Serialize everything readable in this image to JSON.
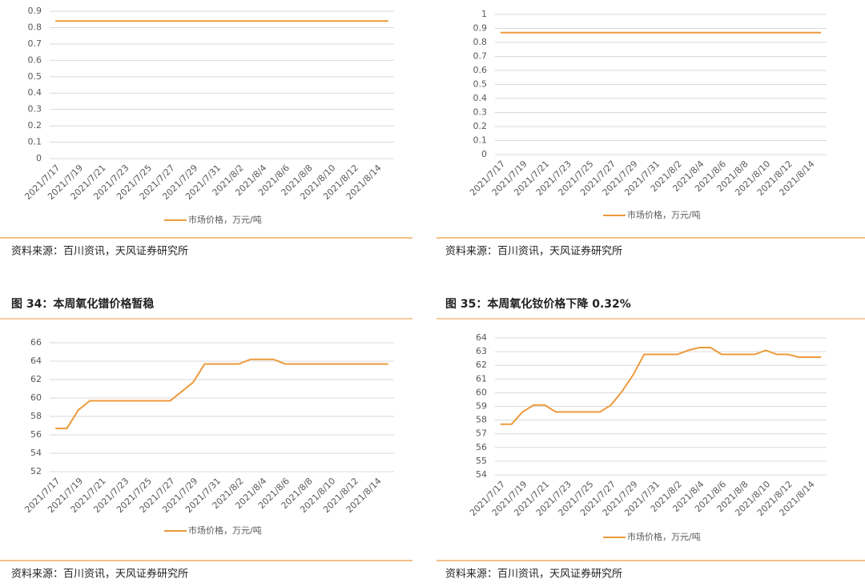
{
  "chart_data": [
    {
      "type": "line",
      "categories": [
        "2021/7/17",
        null,
        "2021/7/19",
        null,
        "2021/7/21",
        null,
        "2021/7/23",
        null,
        "2021/7/25",
        null,
        "2021/7/27",
        null,
        "2021/7/29",
        null,
        "2021/7/31",
        null,
        "2021/8/2",
        null,
        "2021/8/4",
        null,
        "2021/8/6",
        null,
        "2021/8/8",
        null,
        "2021/8/10",
        null,
        "2021/8/12",
        null,
        "2021/8/14",
        null
      ],
      "series": [
        {
          "name": "市场价格，万元/吨",
          "color": "#ed9a3c",
          "values": [
            0.84,
            0.84,
            0.84,
            0.84,
            0.84,
            0.84,
            0.84,
            0.84,
            0.84,
            0.84,
            0.84,
            0.84,
            0.84,
            0.84,
            0.84,
            0.84,
            0.84,
            0.84,
            0.84,
            0.84,
            0.84,
            0.84,
            0.84,
            0.84,
            0.84,
            0.84,
            0.84,
            0.84,
            0.84,
            0.84
          ]
        }
      ],
      "ylim": [
        0,
        0.9
      ],
      "yticks": [
        0,
        0.1,
        0.2,
        0.3,
        0.4,
        0.5,
        0.6,
        0.7,
        0.8,
        0.9
      ],
      "grid": true,
      "legend": "bottom",
      "source": "资料来源：百川资讯，天风证券研究所"
    },
    {
      "type": "line",
      "categories": [
        "2021/7/17",
        null,
        "2021/7/19",
        null,
        "2021/7/21",
        null,
        "2021/7/23",
        null,
        "2021/7/25",
        null,
        "2021/7/27",
        null,
        "2021/7/29",
        null,
        "2021/7/31",
        null,
        "2021/8/2",
        null,
        "2021/8/4",
        null,
        "2021/8/6",
        null,
        "2021/8/8",
        null,
        "2021/8/10",
        null,
        "2021/8/12",
        null,
        "2021/8/14",
        null
      ],
      "series": [
        {
          "name": "市场价格，万元/吨",
          "color": "#ed9a3c",
          "values": [
            0.87,
            0.87,
            0.87,
            0.87,
            0.87,
            0.87,
            0.87,
            0.87,
            0.87,
            0.87,
            0.87,
            0.87,
            0.87,
            0.87,
            0.87,
            0.87,
            0.87,
            0.87,
            0.87,
            0.87,
            0.87,
            0.87,
            0.87,
            0.87,
            0.87,
            0.87,
            0.87,
            0.87,
            0.87,
            0.87
          ]
        }
      ],
      "ylim": [
        0,
        1
      ],
      "yticks": [
        0,
        0.1,
        0.2,
        0.3,
        0.4,
        0.5,
        0.6,
        0.7,
        0.8,
        0.9,
        1
      ],
      "grid": true,
      "legend": "bottom",
      "source": "资料来源：百川资讯，天风证券研究所"
    },
    {
      "type": "line",
      "title": "图 34：本周氧化镨价格暂稳",
      "categories": [
        "2021/7/17",
        null,
        "2021/7/19",
        null,
        "2021/7/21",
        null,
        "2021/7/23",
        null,
        "2021/7/25",
        null,
        "2021/7/27",
        null,
        "2021/7/29",
        null,
        "2021/7/31",
        null,
        "2021/8/2",
        null,
        "2021/8/4",
        null,
        "2021/8/6",
        null,
        "2021/8/8",
        null,
        "2021/8/10",
        null,
        "2021/8/12",
        null,
        "2021/8/14",
        null
      ],
      "series": [
        {
          "name": "市场价格，万元/吨",
          "color": "#ed9a3c",
          "values": [
            56.7,
            56.7,
            58.7,
            59.7,
            59.7,
            59.7,
            59.7,
            59.7,
            59.7,
            59.7,
            59.7,
            60.7,
            61.7,
            63.7,
            63.7,
            63.7,
            63.7,
            64.2,
            64.2,
            64.2,
            63.7,
            63.7,
            63.7,
            63.7,
            63.7,
            63.7,
            63.7,
            63.7,
            63.7,
            63.7
          ]
        }
      ],
      "ylim": [
        52,
        66
      ],
      "yticks": [
        52,
        54,
        56,
        58,
        60,
        62,
        64,
        66
      ],
      "grid": true,
      "legend": "bottom",
      "source": "资料来源：百川资讯，天风证券研究所"
    },
    {
      "type": "line",
      "title": "图 35：本周氧化钕价格下降 0.32%",
      "categories": [
        "2021/7/17",
        null,
        "2021/7/19",
        null,
        "2021/7/21",
        null,
        "2021/7/23",
        null,
        "2021/7/25",
        null,
        "2021/7/27",
        null,
        "2021/7/29",
        null,
        "2021/7/31",
        null,
        "2021/8/2",
        null,
        "2021/8/4",
        null,
        "2021/8/6",
        null,
        "2021/8/8",
        null,
        "2021/8/10",
        null,
        "2021/8/12",
        null,
        "2021/8/14",
        null
      ],
      "series": [
        {
          "name": "市场价格，万元/吨",
          "color": "#ed9a3c",
          "values": [
            57.7,
            57.7,
            58.6,
            59.1,
            59.1,
            58.6,
            58.6,
            58.6,
            58.6,
            58.6,
            59.1,
            60.1,
            61.3,
            62.8,
            62.8,
            62.8,
            62.8,
            63.1,
            63.3,
            63.3,
            62.8,
            62.8,
            62.8,
            62.8,
            63.1,
            62.8,
            62.8,
            62.6,
            62.6,
            62.6
          ]
        }
      ],
      "ylim": [
        54,
        64
      ],
      "yticks": [
        54,
        55,
        56,
        57,
        58,
        59,
        60,
        61,
        62,
        63,
        64
      ],
      "grid": true,
      "legend": "bottom",
      "source": "资料来源：百川资讯，天风证券研究所"
    }
  ]
}
